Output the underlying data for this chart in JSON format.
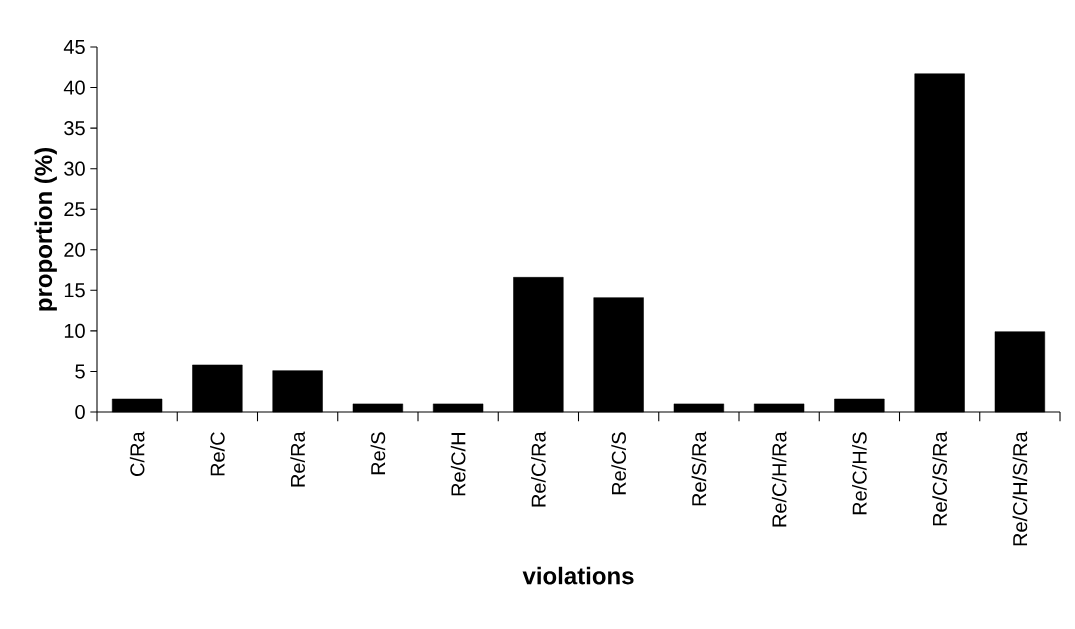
{
  "chart_data": {
    "type": "bar",
    "xlabel": "violations",
    "ylabel": "proportion (%)",
    "categories": [
      "C/Ra",
      "Re/C",
      "Re/Ra",
      "Re/S",
      "Re/C/H",
      "Re/C/Ra",
      "Re/C/S",
      "Re/S/Ra",
      "Re/C/H/Ra",
      "Re/C/H/S",
      "Re/C/S/Ra",
      "Re/C/H/S/Ra"
    ],
    "values": [
      1.6,
      5.8,
      5.1,
      1.0,
      1.0,
      16.6,
      14.1,
      1.0,
      1.0,
      1.6,
      41.7,
      9.9
    ],
    "color": "#000000",
    "ylim": [
      0,
      45
    ],
    "yticks": [
      0,
      5,
      10,
      15,
      20,
      25,
      30,
      35,
      40,
      45
    ],
    "grid": false
  }
}
